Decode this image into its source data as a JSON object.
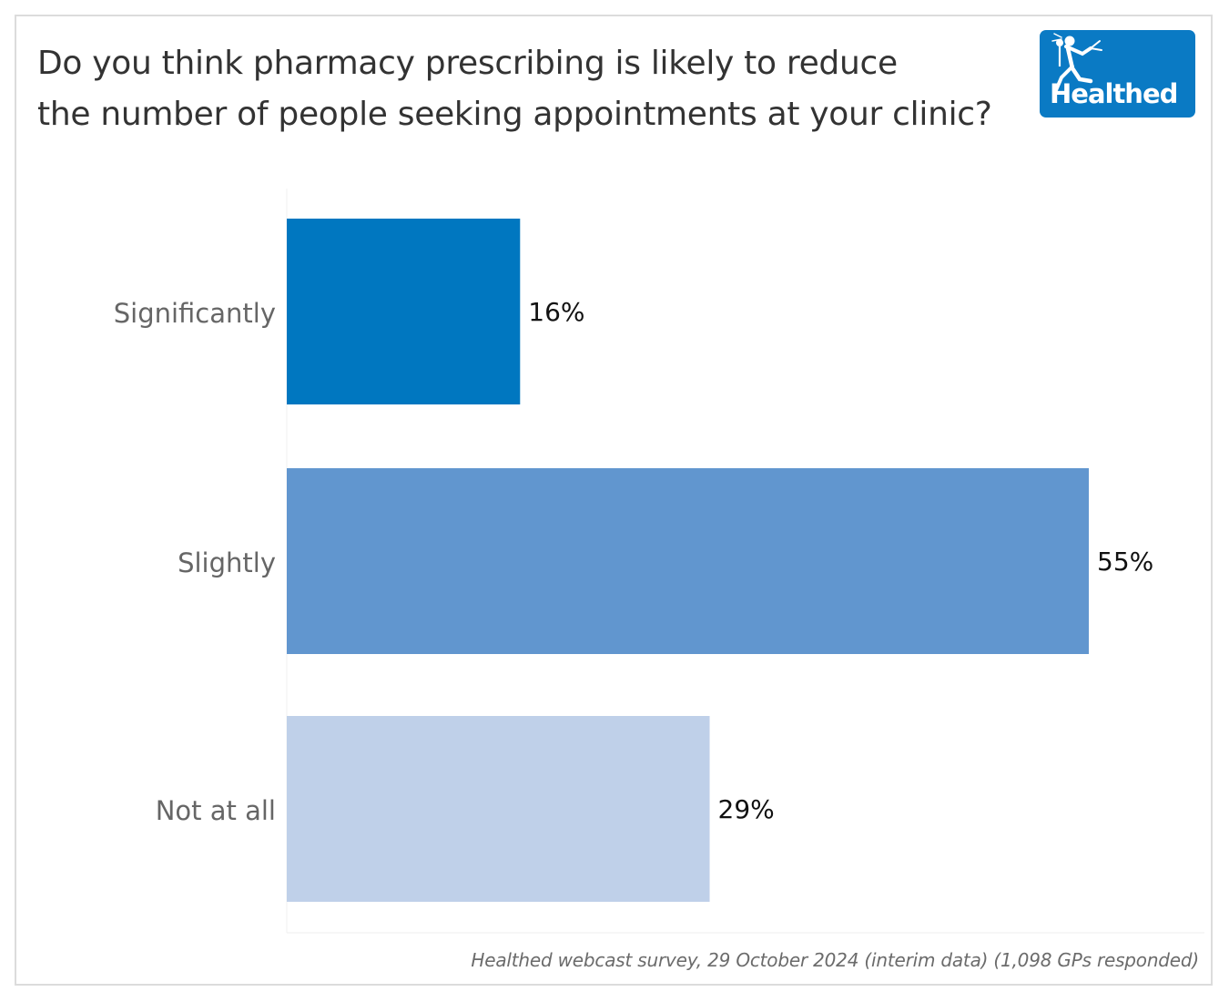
{
  "title_lines": [
    "Do you think pharmacy prescribing is likely to reduce",
    "the number of people seeking appointments at your clinic?"
  ],
  "logo": {
    "text": "Healthed",
    "icon": "hermes-runner-icon",
    "background": "#0a7ac4"
  },
  "source": "Healthed webcast survey, 29 October 2024 (interim data) (1,098 GPs responded)",
  "colors": {
    "significantly": "#0077c0",
    "slightly": "#6196cf",
    "not_at_all": "#bfd0e9"
  },
  "chart_data": {
    "type": "bar",
    "orientation": "horizontal",
    "title": "Do you think pharmacy prescribing is likely to reduce the number of people seeking appointments at your clinic?",
    "categories": [
      "Significantly",
      "Slightly",
      "Not at all"
    ],
    "values": [
      16,
      55,
      29
    ],
    "value_labels": [
      "16%",
      "55%",
      "29%"
    ],
    "bar_colors": [
      "#0077c0",
      "#6196cf",
      "#bfd0e9"
    ],
    "unit": "%",
    "xlim": [
      0,
      55
    ],
    "grid": false,
    "legend": "none"
  }
}
